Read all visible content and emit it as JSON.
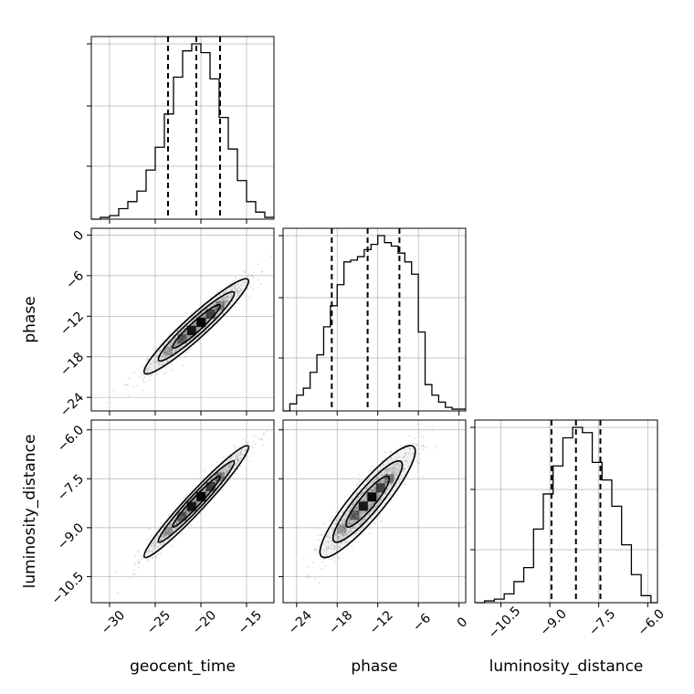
{
  "figure": {
    "variables": [
      "geocent_time",
      "phase",
      "luminosity_distance"
    ]
  },
  "chart_data": [
    {
      "type": "histogram",
      "panel": "geocent_time",
      "xlim": [
        -32,
        -12
      ],
      "bins": [
        -32,
        -31,
        -30,
        -29,
        -28,
        -27,
        -26,
        -25,
        -24,
        -23,
        -22,
        -21,
        -20,
        -19,
        -18,
        -17,
        -16,
        -15,
        -14,
        -13,
        -12
      ],
      "counts": [
        0,
        1,
        2,
        6,
        10,
        16,
        28,
        41,
        60,
        81,
        96,
        100,
        95,
        80,
        58,
        40,
        22,
        10,
        4,
        1
      ],
      "quantile_lines": [
        -23.6,
        -20.5,
        -17.9
      ],
      "grid": true
    },
    {
      "type": "histogram",
      "panel": "phase",
      "xlim": [
        -26,
        1
      ],
      "bins": [
        -26,
        -25,
        -24,
        -23,
        -22,
        -21,
        -20,
        -19,
        -18,
        -17,
        -16,
        -15,
        -14,
        -13,
        -12,
        -11,
        -10,
        -9,
        -8,
        -7,
        -6,
        -5,
        -4,
        -3,
        -2,
        -1,
        0,
        1
      ],
      "counts": [
        0,
        4,
        9,
        13,
        22,
        32,
        48,
        60,
        72,
        85,
        86,
        88,
        92,
        95,
        100,
        96,
        94,
        90,
        85,
        78,
        45,
        15,
        9,
        5,
        2,
        1,
        1
      ],
      "quantile_lines": [
        -18.8,
        -13.5,
        -8.8
      ],
      "grid": true
    },
    {
      "type": "histogram",
      "panel": "luminosity_distance",
      "xlim": [
        -11.3,
        -5.7
      ],
      "bins": [
        -11.3,
        -11.0,
        -10.7,
        -10.4,
        -10.1,
        -9.8,
        -9.5,
        -9.2,
        -8.9,
        -8.6,
        -8.3,
        -8.0,
        -7.7,
        -7.4,
        -7.1,
        -6.8,
        -6.5,
        -6.2,
        -5.9,
        -5.7
      ],
      "counts": [
        0,
        1,
        2,
        5,
        12,
        20,
        42,
        62,
        78,
        94,
        100,
        97,
        80,
        70,
        55,
        33,
        16,
        4,
        0
      ],
      "quantile_lines": [
        -8.95,
        -8.2,
        -7.45
      ],
      "grid": true
    },
    {
      "type": "scatter",
      "panel": "phase vs geocent_time",
      "xlabel": "",
      "ylabel": "phase",
      "xlim": [
        -32,
        -12
      ],
      "ylim": [
        -26,
        1
      ],
      "mean": [
        -20.5,
        -13.5
      ],
      "std": [
        2.6,
        3.2
      ],
      "correlation": 0.95,
      "contours": true,
      "grid": true
    },
    {
      "type": "scatter",
      "panel": "luminosity_distance vs geocent_time",
      "xlabel": "geocent_time",
      "ylabel": "luminosity_distance",
      "xlim": [
        -32,
        -12
      ],
      "ylim": [
        -11.3,
        -5.7
      ],
      "mean": [
        -20.5,
        -8.2
      ],
      "std": [
        2.6,
        0.78
      ],
      "correlation": 0.97,
      "contours": true,
      "grid": true
    },
    {
      "type": "scatter",
      "panel": "luminosity_distance vs phase",
      "xlabel": "phase",
      "ylabel": "",
      "xlim": [
        -26,
        1
      ],
      "ylim": [
        -11.3,
        -5.7
      ],
      "mean": [
        -13.5,
        -8.2
      ],
      "std": [
        3.2,
        0.78
      ],
      "correlation": 0.9,
      "contours": true,
      "grid": true
    }
  ],
  "axes": {
    "geocent_time": {
      "ticks": [
        -30,
        -25,
        -20,
        -15
      ],
      "labels": [
        "−30",
        "−25",
        "−20",
        "−15"
      ]
    },
    "phase": {
      "ticks": [
        -24,
        -18,
        -12,
        -6,
        0
      ],
      "labels": [
        "−24",
        "−18",
        "−12",
        "−6",
        "0"
      ]
    },
    "luminosity_distance": {
      "ticks": [
        -10.5,
        -9.0,
        -7.5,
        -6.0
      ],
      "labels": [
        "−10.5",
        "−9.0",
        "−7.5",
        "−6.0"
      ]
    }
  },
  "labels": {
    "x_geocent_time": "geocent_time",
    "x_phase": "phase",
    "x_luminosity_distance": "luminosity_distance",
    "y_phase": "phase",
    "y_luminosity_distance": "luminosity_distance"
  },
  "colors": {
    "line": "#000000",
    "grid": "#b0b0b0",
    "points": "#9a9a9a"
  }
}
